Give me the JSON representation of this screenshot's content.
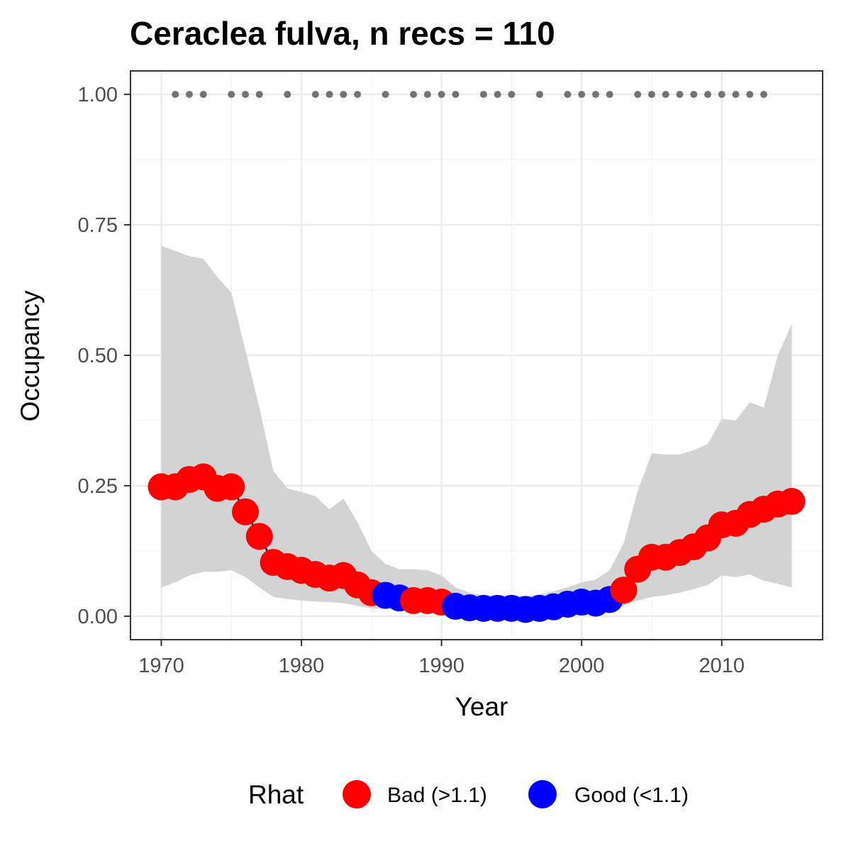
{
  "chart_data": {
    "type": "line",
    "title": "Ceraclea fulva, n recs = 110",
    "xlabel": "Year",
    "ylabel": "Occupancy",
    "xlim": [
      1967.8,
      1917.2
    ],
    "ylim": [
      -0.045,
      1.045
    ],
    "x_ticks": [
      1970,
      1980,
      1990,
      2000,
      2010
    ],
    "x_tick_labels": [
      "1970",
      "1980",
      "1990",
      "2000",
      "2010"
    ],
    "y_ticks": [
      0,
      0.25,
      0.5,
      0.75,
      1
    ],
    "y_tick_labels": [
      "0.00",
      "0.25",
      "0.50",
      "0.75",
      "1.00"
    ],
    "grid": true,
    "colors": {
      "bad": "#ff0000",
      "good": "#0000ff",
      "ribbon": "#d3d3d3",
      "records": "#737373",
      "line": "#000000"
    },
    "legend": {
      "title": "Rhat",
      "position": "bottom",
      "entries": [
        {
          "label": "Bad (>1.1)",
          "color": "#ff0000"
        },
        {
          "label": "Good (<1.1)",
          "color": "#0000ff"
        }
      ]
    },
    "series": [
      {
        "x": [
          1970,
          1971,
          1972,
          1973,
          1974,
          1975,
          1976,
          1977,
          1978,
          1979,
          1980,
          1981,
          1982,
          1983,
          1984,
          1985,
          1986,
          1987,
          1988,
          1989,
          1990,
          1991,
          1992,
          1993,
          1994,
          1995,
          1996,
          1997,
          1998,
          1999,
          2000,
          2001,
          2002,
          2003,
          2004,
          2005,
          2006,
          2007,
          2008,
          2009,
          2010,
          2011,
          2012,
          2013,
          2014,
          2015
        ],
        "y": [
          0.248,
          0.248,
          0.262,
          0.267,
          0.245,
          0.248,
          0.2,
          0.153,
          0.103,
          0.095,
          0.088,
          0.08,
          0.073,
          0.078,
          0.06,
          0.045,
          0.04,
          0.035,
          0.03,
          0.03,
          0.027,
          0.019,
          0.016,
          0.015,
          0.015,
          0.015,
          0.013,
          0.015,
          0.018,
          0.023,
          0.027,
          0.025,
          0.032,
          0.05,
          0.09,
          0.113,
          0.113,
          0.122,
          0.133,
          0.15,
          0.175,
          0.178,
          0.195,
          0.205,
          0.215,
          0.22
        ],
        "rhat": [
          "bad",
          "bad",
          "bad",
          "bad",
          "bad",
          "bad",
          "bad",
          "bad",
          "bad",
          "bad",
          "bad",
          "bad",
          "bad",
          "bad",
          "bad",
          "bad",
          "good",
          "good",
          "bad",
          "bad",
          "bad",
          "good",
          "good",
          "good",
          "good",
          "good",
          "good",
          "good",
          "good",
          "good",
          "good",
          "good",
          "good",
          "bad",
          "bad",
          "bad",
          "bad",
          "bad",
          "bad",
          "bad",
          "bad",
          "bad",
          "bad",
          "bad",
          "bad",
          "bad"
        ],
        "lower": [
          0.055,
          0.065,
          0.078,
          0.085,
          0.085,
          0.088,
          0.075,
          0.055,
          0.037,
          0.033,
          0.03,
          0.028,
          0.027,
          0.025,
          0.02,
          0.015,
          0.014,
          0.012,
          0.01,
          0.01,
          0.008,
          0.007,
          0.006,
          0.006,
          0.006,
          0.006,
          0.005,
          0.006,
          0.007,
          0.008,
          0.01,
          0.01,
          0.012,
          0.02,
          0.03,
          0.037,
          0.04,
          0.045,
          0.052,
          0.06,
          0.078,
          0.075,
          0.08,
          0.068,
          0.062,
          0.055
        ],
        "upper": [
          0.71,
          0.7,
          0.69,
          0.685,
          0.65,
          0.62,
          0.51,
          0.4,
          0.278,
          0.245,
          0.238,
          0.23,
          0.205,
          0.225,
          0.18,
          0.125,
          0.1,
          0.09,
          0.09,
          0.088,
          0.078,
          0.055,
          0.045,
          0.04,
          0.04,
          0.04,
          0.038,
          0.042,
          0.048,
          0.055,
          0.065,
          0.07,
          0.088,
          0.14,
          0.24,
          0.312,
          0.31,
          0.31,
          0.318,
          0.33,
          0.378,
          0.375,
          0.41,
          0.4,
          0.5,
          0.56
        ]
      }
    ],
    "records": {
      "y": 1,
      "x": [
        1971,
        1972,
        1973,
        1975,
        1976,
        1977,
        1979,
        1981,
        1982,
        1983,
        1984,
        1986,
        1988,
        1989,
        1990,
        1991,
        1993,
        1994,
        1995,
        1997,
        1999,
        2000,
        2001,
        2002,
        2004,
        2005,
        2006,
        2007,
        2008,
        2009,
        2010,
        2011,
        2012,
        2013
      ]
    }
  }
}
